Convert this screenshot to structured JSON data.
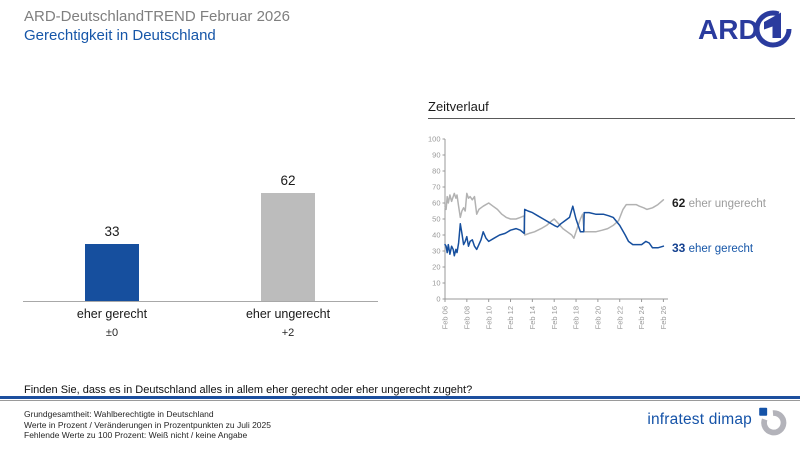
{
  "header": {
    "supertitle": "ARD-DeutschlandTREND Februar 2026",
    "title": "Gerechtigkeit in Deutschland",
    "logo_text": "ARD"
  },
  "timeline": {
    "title": "Zeitverlauf"
  },
  "question": {
    "text": "Finden Sie, dass es in Deutschland alles in allem eher gerecht oder eher ungerecht zugeht?"
  },
  "footer": {
    "lines": [
      "Grundgesamtheit: Wahlberechtigte in Deutschland",
      "Werte in Prozent / Veränderungen in Prozentpunkten zu Juli 2025",
      "Fehlende Werte zu 100 Prozent: Weiß nicht / keine Angabe"
    ],
    "brand": "infratest dimap"
  },
  "colors": {
    "accent_blue": "#164f9e",
    "bar_gray": "#bcbcbc",
    "line_gray": "#b2b2b2",
    "axis_gray": "#999999",
    "title_blue": "#1656a8",
    "logo_navy": "#2a3b9e"
  },
  "chart_data": [
    {
      "type": "bar",
      "title": "",
      "categories": [
        "eher gerecht",
        "eher ungerecht"
      ],
      "values": [
        33,
        62
      ],
      "changes": [
        "±0",
        "+2"
      ],
      "colors": [
        "#164f9e",
        "#bcbcbc"
      ],
      "ylim": [
        0,
        100
      ],
      "grid": false
    },
    {
      "type": "line",
      "title": "Zeitverlauf",
      "ylim": [
        0,
        100
      ],
      "yticks": [
        100,
        90,
        80,
        70,
        60,
        50,
        40,
        30,
        20,
        10,
        0
      ],
      "xticks": {
        "years": [
          2006,
          2008,
          2010,
          2012,
          2014,
          2016,
          2018,
          2020,
          2022,
          2024,
          2026
        ],
        "labels": [
          "Feb 06",
          "Feb 08",
          "Feb 10",
          "Feb 12",
          "Feb 14",
          "Feb 16",
          "Feb 18",
          "Feb 20",
          "Feb 22",
          "Feb 24",
          "Feb 26"
        ]
      },
      "legend_position": "right-of-line-ends",
      "grid": false,
      "series": [
        {
          "name": "eher ungerecht",
          "end_value": 62,
          "color": "#b2b2b2",
          "points": [
            [
              2006.0,
              58
            ],
            [
              2006.1,
              56
            ],
            [
              2006.2,
              64
            ],
            [
              2006.3,
              60
            ],
            [
              2006.45,
              65
            ],
            [
              2006.6,
              61
            ],
            [
              2006.75,
              64
            ],
            [
              2006.85,
              66
            ],
            [
              2007.0,
              63
            ],
            [
              2007.1,
              65
            ],
            [
              2007.25,
              58
            ],
            [
              2007.4,
              51
            ],
            [
              2007.55,
              55
            ],
            [
              2007.7,
              57
            ],
            [
              2007.85,
              55
            ],
            [
              2008.0,
              66
            ],
            [
              2008.15,
              63
            ],
            [
              2008.3,
              64
            ],
            [
              2008.5,
              62
            ],
            [
              2008.7,
              64
            ],
            [
              2008.9,
              53
            ],
            [
              2009.1,
              56
            ],
            [
              2009.3,
              57
            ],
            [
              2009.5,
              58
            ],
            [
              2010.0,
              60
            ],
            [
              2010.4,
              58
            ],
            [
              2010.8,
              56
            ],
            [
              2011.2,
              53
            ],
            [
              2011.6,
              51
            ],
            [
              2012.0,
              50
            ],
            [
              2012.5,
              50
            ],
            [
              2012.9,
              51
            ],
            [
              2013.25,
              52
            ],
            [
              2013.3,
              40
            ],
            [
              2013.7,
              41
            ],
            [
              2014.2,
              42
            ],
            [
              2014.8,
              44
            ],
            [
              2015.3,
              46
            ],
            [
              2015.8,
              49
            ],
            [
              2016.0,
              50
            ],
            [
              2016.4,
              47
            ],
            [
              2016.8,
              44
            ],
            [
              2017.2,
              42
            ],
            [
              2017.6,
              40
            ],
            [
              2017.8,
              38
            ],
            [
              2018.1,
              44
            ],
            [
              2018.4,
              50
            ],
            [
              2018.6,
              53
            ],
            [
              2018.75,
              42
            ],
            [
              2019.2,
              42
            ],
            [
              2019.8,
              42
            ],
            [
              2020.4,
              43
            ],
            [
              2020.9,
              44
            ],
            [
              2021.4,
              46
            ],
            [
              2021.9,
              49
            ],
            [
              2022.3,
              56
            ],
            [
              2022.6,
              59
            ],
            [
              2023.0,
              59
            ],
            [
              2023.5,
              59
            ],
            [
              2023.8,
              58
            ],
            [
              2024.2,
              57
            ],
            [
              2024.5,
              56
            ],
            [
              2025.0,
              57
            ],
            [
              2025.5,
              59
            ],
            [
              2026.0,
              62
            ]
          ]
        },
        {
          "name": "eher gerecht",
          "end_value": 33,
          "color": "#164f9e",
          "points": [
            [
              2006.0,
              34
            ],
            [
              2006.1,
              33
            ],
            [
              2006.2,
              29
            ],
            [
              2006.3,
              34
            ],
            [
              2006.45,
              28
            ],
            [
              2006.6,
              33
            ],
            [
              2006.75,
              31
            ],
            [
              2006.85,
              27
            ],
            [
              2007.0,
              31
            ],
            [
              2007.1,
              29
            ],
            [
              2007.25,
              35
            ],
            [
              2007.4,
              47
            ],
            [
              2007.55,
              41
            ],
            [
              2007.7,
              34
            ],
            [
              2007.85,
              36
            ],
            [
              2008.0,
              39
            ],
            [
              2008.15,
              33
            ],
            [
              2008.3,
              36
            ],
            [
              2008.5,
              37
            ],
            [
              2008.7,
              33
            ],
            [
              2008.9,
              31
            ],
            [
              2009.1,
              34
            ],
            [
              2009.3,
              37
            ],
            [
              2009.5,
              42
            ],
            [
              2009.75,
              38
            ],
            [
              2010.0,
              36
            ],
            [
              2010.5,
              38
            ],
            [
              2011.0,
              40
            ],
            [
              2011.5,
              41
            ],
            [
              2012.0,
              43
            ],
            [
              2012.5,
              44
            ],
            [
              2012.9,
              43
            ],
            [
              2013.25,
              41
            ],
            [
              2013.3,
              56
            ],
            [
              2013.6,
              55
            ],
            [
              2014.0,
              54
            ],
            [
              2014.5,
              52
            ],
            [
              2015.0,
              50
            ],
            [
              2015.5,
              48
            ],
            [
              2016.0,
              46
            ],
            [
              2016.3,
              45
            ],
            [
              2016.6,
              47
            ],
            [
              2017.0,
              49
            ],
            [
              2017.4,
              51
            ],
            [
              2017.7,
              58
            ],
            [
              2018.0,
              50
            ],
            [
              2018.4,
              42
            ],
            [
              2018.7,
              42
            ],
            [
              2018.75,
              54
            ],
            [
              2019.2,
              54
            ],
            [
              2019.8,
              53
            ],
            [
              2020.5,
              53
            ],
            [
              2021.0,
              52
            ],
            [
              2021.4,
              51
            ],
            [
              2022.0,
              46
            ],
            [
              2022.5,
              40
            ],
            [
              2022.8,
              36
            ],
            [
              2023.2,
              34
            ],
            [
              2023.6,
              34
            ],
            [
              2024.0,
              34
            ],
            [
              2024.4,
              36
            ],
            [
              2024.7,
              35
            ],
            [
              2025.0,
              32
            ],
            [
              2025.5,
              32
            ],
            [
              2026.0,
              33
            ]
          ]
        }
      ]
    }
  ]
}
